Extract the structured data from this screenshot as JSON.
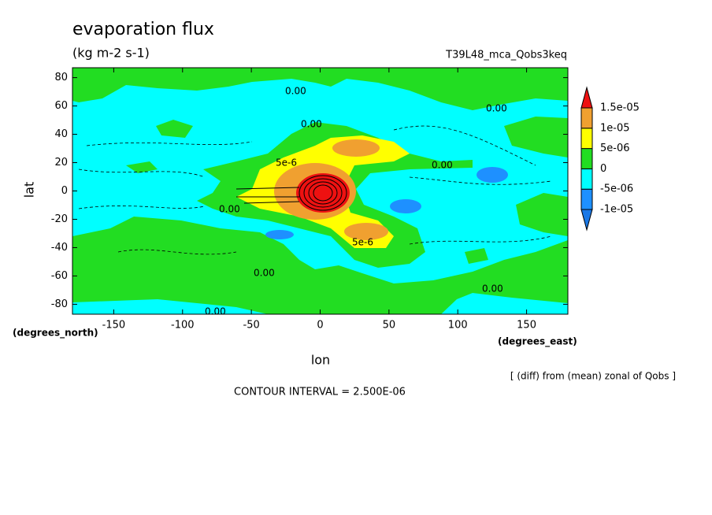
{
  "chart_data": {
    "type": "contour",
    "title": "evaporation flux",
    "subtitle": "(kg m-2 s-1)",
    "dataset": "T39L48_mca_Qobs3keq",
    "x_label": "lon",
    "y_label": "lat",
    "x_units": "(degrees_east)",
    "y_units": "(degrees_north)",
    "note": "[ (diff) from (mean) zonal of Qobs ]",
    "contour_interval": "CONTOUR INTERVAL = 2.500E-06",
    "xlim": [
      -180,
      180
    ],
    "xticks": [
      -150,
      -100,
      -50,
      0,
      50,
      100,
      150
    ],
    "ylim": [
      -87,
      87
    ],
    "yticks": [
      -80,
      -60,
      -40,
      -20,
      0,
      20,
      40,
      60,
      80
    ],
    "contour_labels": [
      "0.00",
      "0.00",
      "5e-6",
      "0.00",
      "0.00",
      "5e-6",
      "0.00",
      "0.00",
      "0.00",
      "0.00"
    ],
    "colorbar": {
      "levels": [
        {
          "value": -1e-05,
          "label": "-1e-05"
        },
        {
          "value": -5e-06,
          "label": "-5e-06"
        },
        0,
        {
          "value": 5e-06,
          "label": "5e-06"
        },
        {
          "value": 1e-05,
          "label": "1e-05"
        },
        {
          "value": 1.5e-05,
          "label": "1.5e-05"
        }
      ],
      "colors": [
        "#1a78e6",
        "#1e90ff",
        "#00ffff",
        "#22dd22",
        "#ffff00",
        "#f0a030",
        "#ee1111"
      ]
    }
  }
}
